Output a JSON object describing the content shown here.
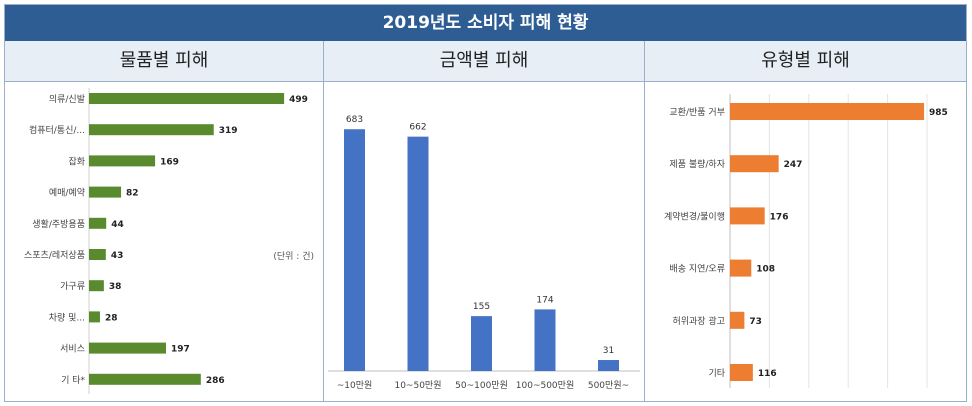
{
  "title": "2019년도 소비자 피해 현황",
  "headers": [
    "물품별 피해",
    "금액별 피해",
    "유형별 피해"
  ],
  "colors": {
    "banner": "#2e5d93",
    "green": "#5a8a2e",
    "blue": "#4472c4",
    "orange": "#ed7d31"
  },
  "chart_data": [
    {
      "type": "bar",
      "orientation": "horizontal",
      "title": "물품별 피해",
      "unit_note": "(단위 : 건)",
      "categories": [
        "의류/신발",
        "컴퓨터/통신/...",
        "잡화",
        "예매/예약",
        "생활/주방용품",
        "스포츠/레저상품",
        "가구류",
        "차량 및...",
        "서비스",
        "기 타*"
      ],
      "values": [
        499,
        319,
        169,
        82,
        44,
        43,
        38,
        28,
        197,
        286
      ],
      "color": "#5a8a2e"
    },
    {
      "type": "bar",
      "orientation": "vertical",
      "title": "금액별 피해",
      "categories": [
        "~10만원",
        "10~50만원",
        "50~100만원",
        "100~500만원",
        "500만원~"
      ],
      "values": [
        683,
        662,
        155,
        174,
        31
      ],
      "color": "#4472c4"
    },
    {
      "type": "bar",
      "orientation": "horizontal",
      "title": "유형별 피해",
      "categories": [
        "교환/반품 거부",
        "제품 불량/하자",
        "계약변경/불이행",
        "배송 지연/오류",
        "허위과장 광고",
        "기타"
      ],
      "values": [
        985,
        247,
        176,
        108,
        73,
        116
      ],
      "color": "#ed7d31"
    }
  ]
}
